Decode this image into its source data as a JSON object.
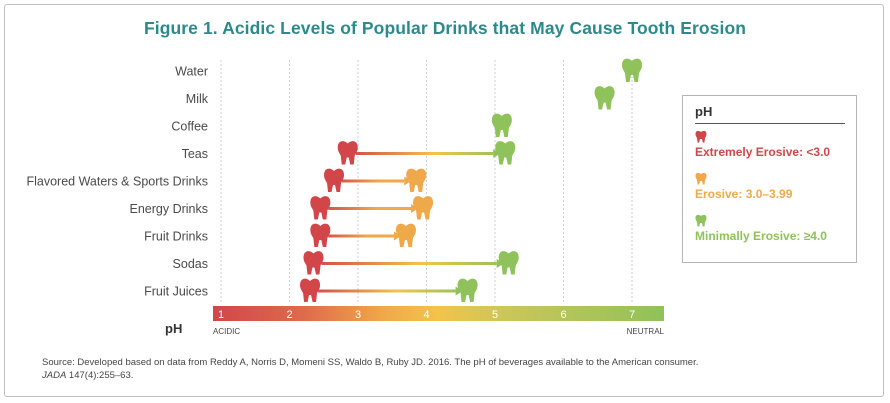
{
  "title": "Figure 1. Acidic Levels of Popular Drinks that May Cause Tooth Erosion",
  "colors": {
    "extreme": "#d2464a",
    "erosive": "#f0a94a",
    "minimal": "#8fc25a",
    "yellow": "#f2c44a",
    "title": "#2c8a8a",
    "grid": "#cfcfcf"
  },
  "chart_data": {
    "type": "range-arrow",
    "xlabel": "pH",
    "xlim": [
      1,
      7.5
    ],
    "ticks": [
      "1",
      "2",
      "3",
      "4",
      "5",
      "6",
      "7"
    ],
    "scale_left_label": "ACIDIC",
    "scale_right_label": "NEUTRAL",
    "categories": [
      "Water",
      "Milk",
      "Coffee",
      "Teas",
      "Flavored Waters & Sports Drinks",
      "Energy Drinks",
      "Fruit Drinks",
      "Sodas",
      "Fruit Juices"
    ],
    "ranges": [
      {
        "category": "Water",
        "low": 7.0,
        "high": 7.0
      },
      {
        "category": "Milk",
        "low": 6.6,
        "high": 6.6
      },
      {
        "category": "Coffee",
        "low": 5.1,
        "high": 5.1
      },
      {
        "category": "Teas",
        "low": 2.85,
        "high": 5.15
      },
      {
        "category": "Flavored Waters & Sports Drinks",
        "low": 2.65,
        "high": 3.85
      },
      {
        "category": "Energy Drinks",
        "low": 2.45,
        "high": 3.95
      },
      {
        "category": "Fruit Drinks",
        "low": 2.45,
        "high": 3.7
      },
      {
        "category": "Sodas",
        "low": 2.35,
        "high": 5.2
      },
      {
        "category": "Fruit Juices",
        "low": 2.3,
        "high": 4.6
      }
    ]
  },
  "legend": {
    "title": "pH",
    "items": [
      {
        "label": "Extremely Erosive: <3.0",
        "color": "#d2464a"
      },
      {
        "label": "Erosive: 3.0–3.99",
        "color": "#f0a94a"
      },
      {
        "label": "Minimally Erosive: ≥4.0",
        "color": "#8fc25a"
      }
    ]
  },
  "source": {
    "line1": "Source: Developed based on data from Reddy A, Norris D, Momeni SS, Waldo B, Ruby JD. 2016. The pH of beverages available to the American consumer.",
    "journal": "JADA",
    "line2_rest": " 147(4):255–63."
  }
}
